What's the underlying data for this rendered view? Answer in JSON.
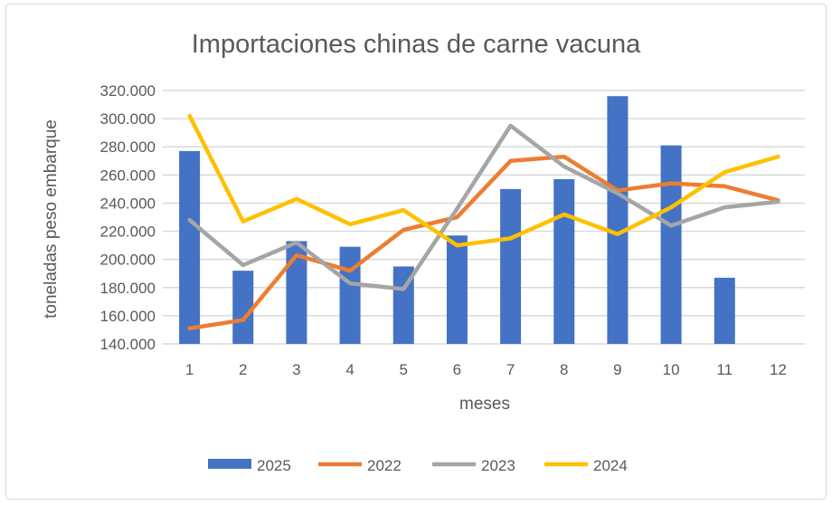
{
  "chart_data": {
    "type": "bar+line",
    "title": "Importaciones chinas de carne vacuna",
    "xlabel": "meses",
    "ylabel": "toneladas peso embarque",
    "categories": [
      "1",
      "2",
      "3",
      "4",
      "5",
      "6",
      "7",
      "8",
      "9",
      "10",
      "11",
      "12"
    ],
    "ylim": [
      140000,
      320000
    ],
    "yticks": [
      140000,
      160000,
      180000,
      200000,
      220000,
      240000,
      260000,
      280000,
      300000,
      320000
    ],
    "ytick_labels": [
      "140.000",
      "160.000",
      "180.000",
      "200.000",
      "220.000",
      "240.000",
      "260.000",
      "280.000",
      "300.000",
      "320.000"
    ],
    "grid": true,
    "legend_position": "bottom",
    "series": [
      {
        "name": "2025",
        "kind": "bar",
        "color": "#4472c4",
        "values": [
          277000,
          192000,
          213000,
          209000,
          195000,
          217000,
          250000,
          257000,
          316000,
          281000,
          187000,
          null
        ]
      },
      {
        "name": "2022",
        "kind": "line",
        "color": "#ed7d31",
        "values": [
          151000,
          157000,
          203000,
          192000,
          221000,
          230000,
          270000,
          273000,
          249000,
          254000,
          252000,
          242000
        ]
      },
      {
        "name": "2023",
        "kind": "line",
        "color": "#a5a5a5",
        "values": [
          228000,
          196000,
          212000,
          183000,
          179000,
          236000,
          295000,
          266000,
          247000,
          224000,
          237000,
          241000
        ]
      },
      {
        "name": "2024",
        "kind": "line",
        "color": "#ffc000",
        "values": [
          302000,
          227000,
          243000,
          225000,
          235000,
          210000,
          215000,
          232000,
          218000,
          237000,
          262000,
          273000
        ]
      }
    ]
  }
}
